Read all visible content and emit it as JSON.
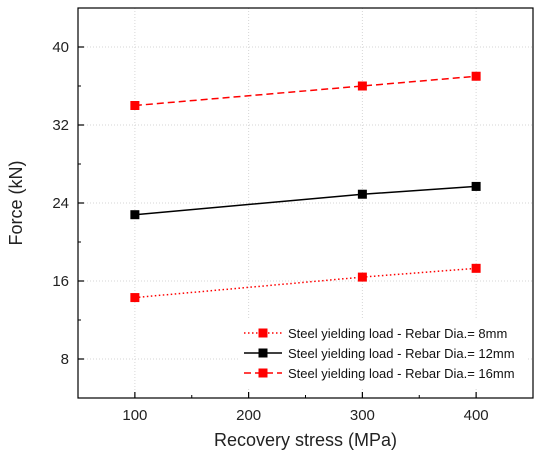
{
  "chart_data": {
    "type": "line",
    "title": "",
    "xlabel": "Recovery stress (MPa)",
    "ylabel": "Force (kN)",
    "xlim": [
      50,
      450
    ],
    "ylim": [
      4,
      44
    ],
    "xticks": [
      100,
      200,
      300,
      400
    ],
    "yticks": [
      8,
      16,
      24,
      32,
      40
    ],
    "grid": true,
    "legend_position": "bottom-right",
    "series": [
      {
        "name": "Steel yielding load - Rebar Dia.= 8mm",
        "color": "#ff0000",
        "line_style": "dotted",
        "marker": "square",
        "x": [
          100,
          300,
          400
        ],
        "y": [
          14.3,
          16.4,
          17.3
        ]
      },
      {
        "name": "Steel yielding load - Rebar Dia.= 12mm",
        "color": "#000000",
        "line_style": "solid",
        "marker": "square",
        "x": [
          100,
          300,
          400
        ],
        "y": [
          22.8,
          24.9,
          25.7
        ]
      },
      {
        "name": "Steel yielding load - Rebar Dia.= 16mm",
        "color": "#ff0000",
        "line_style": "dashed",
        "marker": "square",
        "x": [
          100,
          300,
          400
        ],
        "y": [
          34.0,
          36.0,
          37.0
        ]
      }
    ]
  }
}
